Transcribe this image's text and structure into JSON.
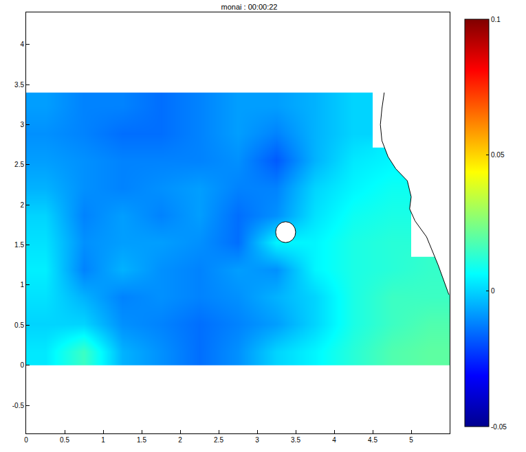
{
  "chart_data": {
    "type": "heatmap",
    "title": "monai : 00:00:22",
    "x": [
      0.25,
      0.75,
      1.25,
      1.75,
      2.25,
      2.75,
      3.25,
      3.75,
      4.25,
      4.75,
      5.25
    ],
    "y": [
      0.17,
      0.51,
      0.85,
      1.19,
      1.53,
      1.87,
      2.21,
      2.55,
      2.89,
      3.23
    ],
    "z": [
      [
        0.003,
        0.015,
        -0.005,
        -0.01,
        -0.015,
        -0.01,
        0.0,
        0.005,
        0.012,
        0.018,
        0.02
      ],
      [
        0.0,
        0.0,
        -0.01,
        -0.012,
        -0.015,
        -0.012,
        -0.008,
        0.0,
        0.01,
        0.015,
        0.018
      ],
      [
        0.002,
        -0.005,
        -0.012,
        -0.01,
        -0.012,
        -0.01,
        -0.005,
        0.0,
        0.01,
        0.015,
        0.015
      ],
      [
        0.004,
        -0.012,
        -0.005,
        -0.01,
        -0.012,
        -0.008,
        -0.01,
        0.005,
        0.01,
        0.012,
        0.014
      ],
      [
        0.002,
        -0.01,
        -0.008,
        -0.008,
        -0.01,
        -0.015,
        0.005,
        0.005,
        0.01,
        0.012,
        null
      ],
      [
        0.0,
        -0.012,
        -0.008,
        -0.012,
        -0.008,
        -0.015,
        -0.01,
        0.002,
        0.008,
        0.01,
        null
      ],
      [
        -0.005,
        -0.01,
        -0.012,
        -0.01,
        -0.008,
        -0.012,
        -0.012,
        0.0,
        0.005,
        0.008,
        null
      ],
      [
        -0.008,
        -0.01,
        -0.012,
        -0.012,
        -0.012,
        -0.01,
        -0.018,
        -0.005,
        0.003,
        0.005,
        null
      ],
      [
        -0.01,
        -0.012,
        -0.015,
        -0.015,
        -0.012,
        -0.008,
        -0.012,
        -0.005,
        0.0,
        null,
        null
      ],
      [
        -0.008,
        -0.012,
        -0.012,
        -0.015,
        -0.012,
        -0.008,
        -0.008,
        -0.005,
        0.0,
        null,
        null
      ]
    ],
    "xlim": [
      0,
      5.5
    ],
    "ylim": [
      -0.85,
      4.4
    ],
    "xticks": [
      0,
      0.5,
      1,
      1.5,
      2,
      2.5,
      3,
      3.5,
      4,
      4.5,
      5
    ],
    "yticks": [
      -0.5,
      0,
      0.5,
      1,
      1.5,
      2,
      2.5,
      3,
      3.5,
      4
    ],
    "colorbar": {
      "range": [
        -0.05,
        0.1
      ],
      "ticks": [
        -0.05,
        0,
        0.05,
        0.1
      ]
    },
    "coastline": {
      "x": [
        4.65,
        4.62,
        4.6,
        4.62,
        4.7,
        4.8,
        4.95,
        5.0,
        4.98,
        5.05,
        5.2,
        5.35,
        5.49
      ],
      "y": [
        3.4,
        3.2,
        3.0,
        2.8,
        2.6,
        2.45,
        2.3,
        2.1,
        1.95,
        1.8,
        1.6,
        1.25,
        0.88
      ]
    },
    "island": {
      "center": [
        3.37,
        1.66
      ],
      "radius": 0.13
    },
    "grid": false
  }
}
